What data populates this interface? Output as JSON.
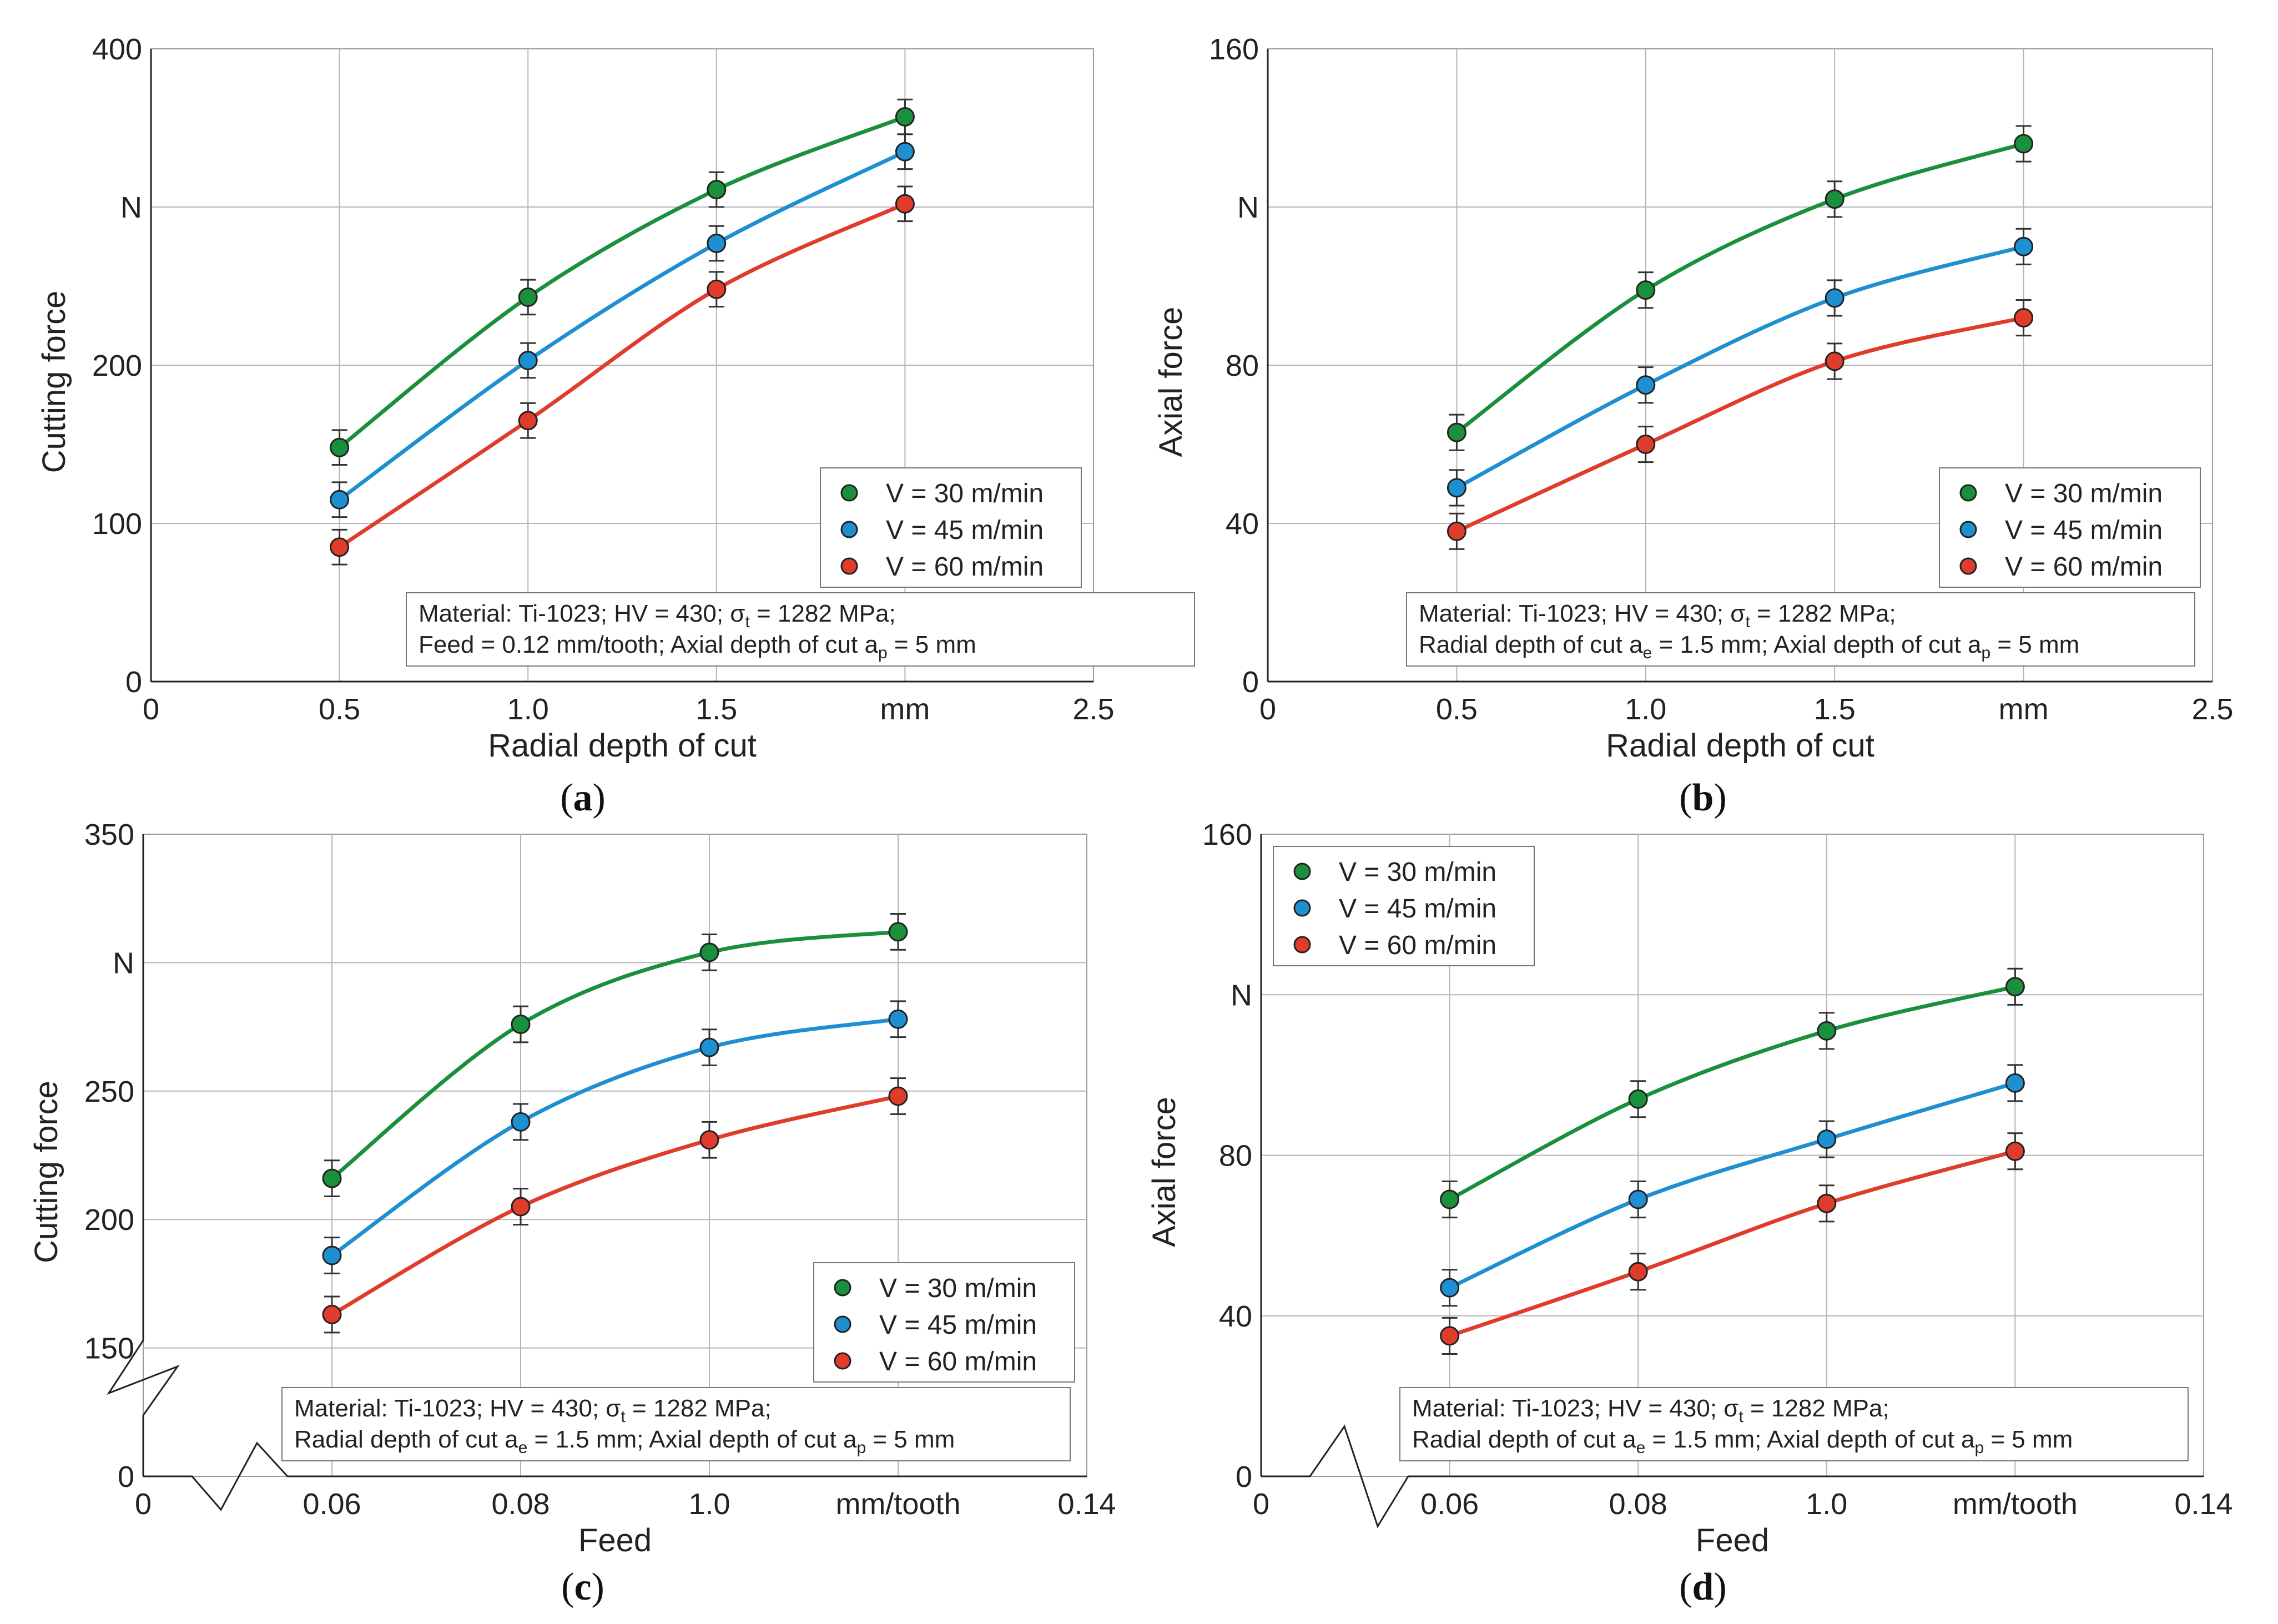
{
  "chart_data": [
    {
      "type": "line",
      "panel_label": "(a)",
      "xlabel": "Radial depth of cut",
      "ylabel": "Cutting force",
      "x_unit_label": "mm",
      "y_unit_label": "N",
      "xlim": [
        0,
        2.5
      ],
      "ylim": [
        0,
        400
      ],
      "x_ticks": [
        "0",
        "0.5",
        "1.0",
        "1.5",
        "mm",
        "2.5"
      ],
      "y_ticks": [
        "0",
        "100",
        "200",
        "N",
        "400"
      ],
      "y_break": false,
      "x_break": false,
      "x": [
        0.5,
        1.0,
        1.5,
        2.0
      ],
      "series": [
        {
          "name": "V = 30 m/min",
          "color": "#1a8f3c",
          "values": [
            148,
            243,
            311,
            357
          ],
          "err": 11
        },
        {
          "name": "V = 45 m/min",
          "color": "#1e8fd0",
          "values": [
            115,
            203,
            277,
            335
          ],
          "err": 11
        },
        {
          "name": "V = 60 m/min",
          "color": "#e03c2c",
          "values": [
            85,
            165,
            248,
            302
          ],
          "err": 11
        }
      ],
      "legend_position": "lower-right",
      "note": {
        "line1": "Material: Ti-1023; HV = 430; σt = 1282 MPa;",
        "line2": "Feed = 0.12 mm/tooth; Axial depth of cut ap = 5 mm"
      }
    },
    {
      "type": "line",
      "panel_label": "(b)",
      "xlabel": "Radial depth of cut",
      "ylabel": "Axial force",
      "x_unit_label": "mm",
      "y_unit_label": "N",
      "xlim": [
        0,
        2.5
      ],
      "ylim": [
        0,
        160
      ],
      "x_ticks": [
        "0",
        "0.5",
        "1.0",
        "1.5",
        "mm",
        "2.5"
      ],
      "y_ticks": [
        "0",
        "40",
        "80",
        "N",
        "160"
      ],
      "y_break": false,
      "x_break": false,
      "x": [
        0.5,
        1.0,
        1.5,
        2.0
      ],
      "series": [
        {
          "name": "V = 30 m/min",
          "color": "#1a8f3c",
          "values": [
            63,
            99,
            122,
            136
          ],
          "err": 4.5
        },
        {
          "name": "V = 45 m/min",
          "color": "#1e8fd0",
          "values": [
            49,
            75,
            97,
            110
          ],
          "err": 4.5
        },
        {
          "name": "V = 60 m/min",
          "color": "#e03c2c",
          "values": [
            38,
            60,
            81,
            92
          ],
          "err": 4.5
        }
      ],
      "legend_position": "lower-right",
      "note": {
        "line1": "Material: Ti-1023; HV = 430; σt = 1282 MPa;",
        "line2": "Radial depth of cut ae = 1.5 mm; Axial depth of cut ap = 5 mm"
      }
    },
    {
      "type": "line",
      "panel_label": "(c)",
      "xlabel": "Feed",
      "ylabel": "Cutting force",
      "x_unit_label": "mm/tooth",
      "y_unit_label": "N",
      "xlim": [
        0.04,
        0.14
      ],
      "ylim": [
        100,
        350
      ],
      "x_ticks": [
        "0",
        "0.06",
        "0.08",
        "1.0",
        "mm/tooth",
        "0.14"
      ],
      "y_ticks": [
        "0",
        "150",
        "200",
        "250",
        "N",
        "350"
      ],
      "y_break": true,
      "x_break": true,
      "x": [
        0.06,
        0.08,
        0.1,
        0.12
      ],
      "series": [
        {
          "name": "V = 30 m/min",
          "color": "#1a8f3c",
          "values": [
            216,
            276,
            304,
            312
          ],
          "err": 7
        },
        {
          "name": "V = 45 m/min",
          "color": "#1e8fd0",
          "values": [
            186,
            238,
            267,
            278
          ],
          "err": 7
        },
        {
          "name": "V = 60 m/min",
          "color": "#e03c2c",
          "values": [
            163,
            205,
            231,
            248
          ],
          "err": 7
        }
      ],
      "legend_position": "lower-right",
      "note": {
        "line1": "Material: Ti-1023; HV = 430; σt = 1282 MPa;",
        "line2": "Radial depth of cut ae = 1.5 mm; Axial depth of cut ap = 5 mm"
      }
    },
    {
      "type": "line",
      "panel_label": "(d)",
      "xlabel": "Feed",
      "ylabel": "Axial force",
      "x_unit_label": "mm/tooth",
      "y_unit_label": "N",
      "xlim": [
        0.04,
        0.14
      ],
      "ylim": [
        0,
        160
      ],
      "x_ticks": [
        "0",
        "0.06",
        "0.08",
        "1.0",
        "mm/tooth",
        "0.14"
      ],
      "y_ticks": [
        "0",
        "40",
        "80",
        "N",
        "160"
      ],
      "y_break": false,
      "x_break": true,
      "x": [
        0.06,
        0.08,
        0.1,
        0.12
      ],
      "series": [
        {
          "name": "V = 30 m/min",
          "color": "#1a8f3c",
          "values": [
            69,
            94,
            111,
            122
          ],
          "err": 4.5
        },
        {
          "name": "V = 45 m/min",
          "color": "#1e8fd0",
          "values": [
            47,
            69,
            84,
            98
          ],
          "err": 4.5
        },
        {
          "name": "V = 60 m/min",
          "color": "#e03c2c",
          "values": [
            35,
            51,
            68,
            81
          ],
          "err": 4.5
        }
      ],
      "legend_position": "top-left",
      "note": {
        "line1": "Material: Ti-1023; HV = 430; σt = 1282 MPa;",
        "line2": "Radial depth of cut ae = 1.5 mm; Axial depth of cut ap = 5 mm"
      }
    }
  ]
}
